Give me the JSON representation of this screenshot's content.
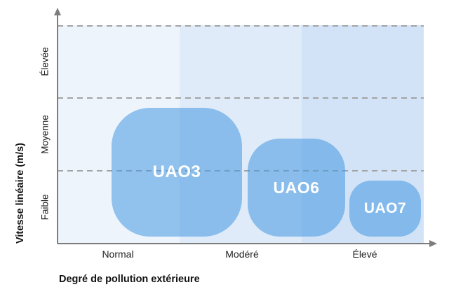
{
  "colors": {
    "band_normal": "#eef4fc",
    "band_modere": "#dfebf9",
    "band_eleve": "#d2e3f7",
    "zone_fill": "rgba(72,154,224,0.56)",
    "zone_label": "#ffffff",
    "axis": "#7d7d7d",
    "gridline": "#a3a3a3",
    "text": "#1f1f1f"
  },
  "icons": {
    "y_axis_arrow": "triangle-up",
    "x_axis_arrow": "triangle-right"
  },
  "chart_data": {
    "type": "scatter",
    "variant": "zone-range-chart",
    "title": "",
    "xlabel": "Degré de pollution extérieure",
    "ylabel": "Vitesse linéaire (m/s)",
    "x_categories": [
      "Normal",
      "Modéré",
      "Élevé"
    ],
    "y_categories": [
      "Faible",
      "Moyenne",
      "Élevée"
    ],
    "grid": "horizontal dashed lines at y-band boundaries (behind zones)",
    "background": "three vertical bands, one per x-category, increasingly blue",
    "axis_ranges": {
      "x_bands": [
        0,
        3
      ],
      "y_bands": [
        0,
        3
      ]
    },
    "legend": "none",
    "zones": [
      {
        "name": "UAO3",
        "x_span": "Normal to Modéré",
        "y_span": "Faible to Moyenne",
        "x_range_bands": [
          0.44,
          1.51
        ],
        "y_range_bands": [
          0.1,
          1.87
        ]
      },
      {
        "name": "UAO6",
        "x_span": "Modéré to Élevé",
        "y_span": "Faible to Moyenne",
        "x_range_bands": [
          1.56,
          2.36
        ],
        "y_range_bands": [
          0.1,
          1.44
        ]
      },
      {
        "name": "UAO7",
        "x_span": "Élevé",
        "y_span": "Faible",
        "x_range_bands": [
          2.39,
          2.98
        ],
        "y_range_bands": [
          0.1,
          0.85
        ]
      }
    ]
  }
}
